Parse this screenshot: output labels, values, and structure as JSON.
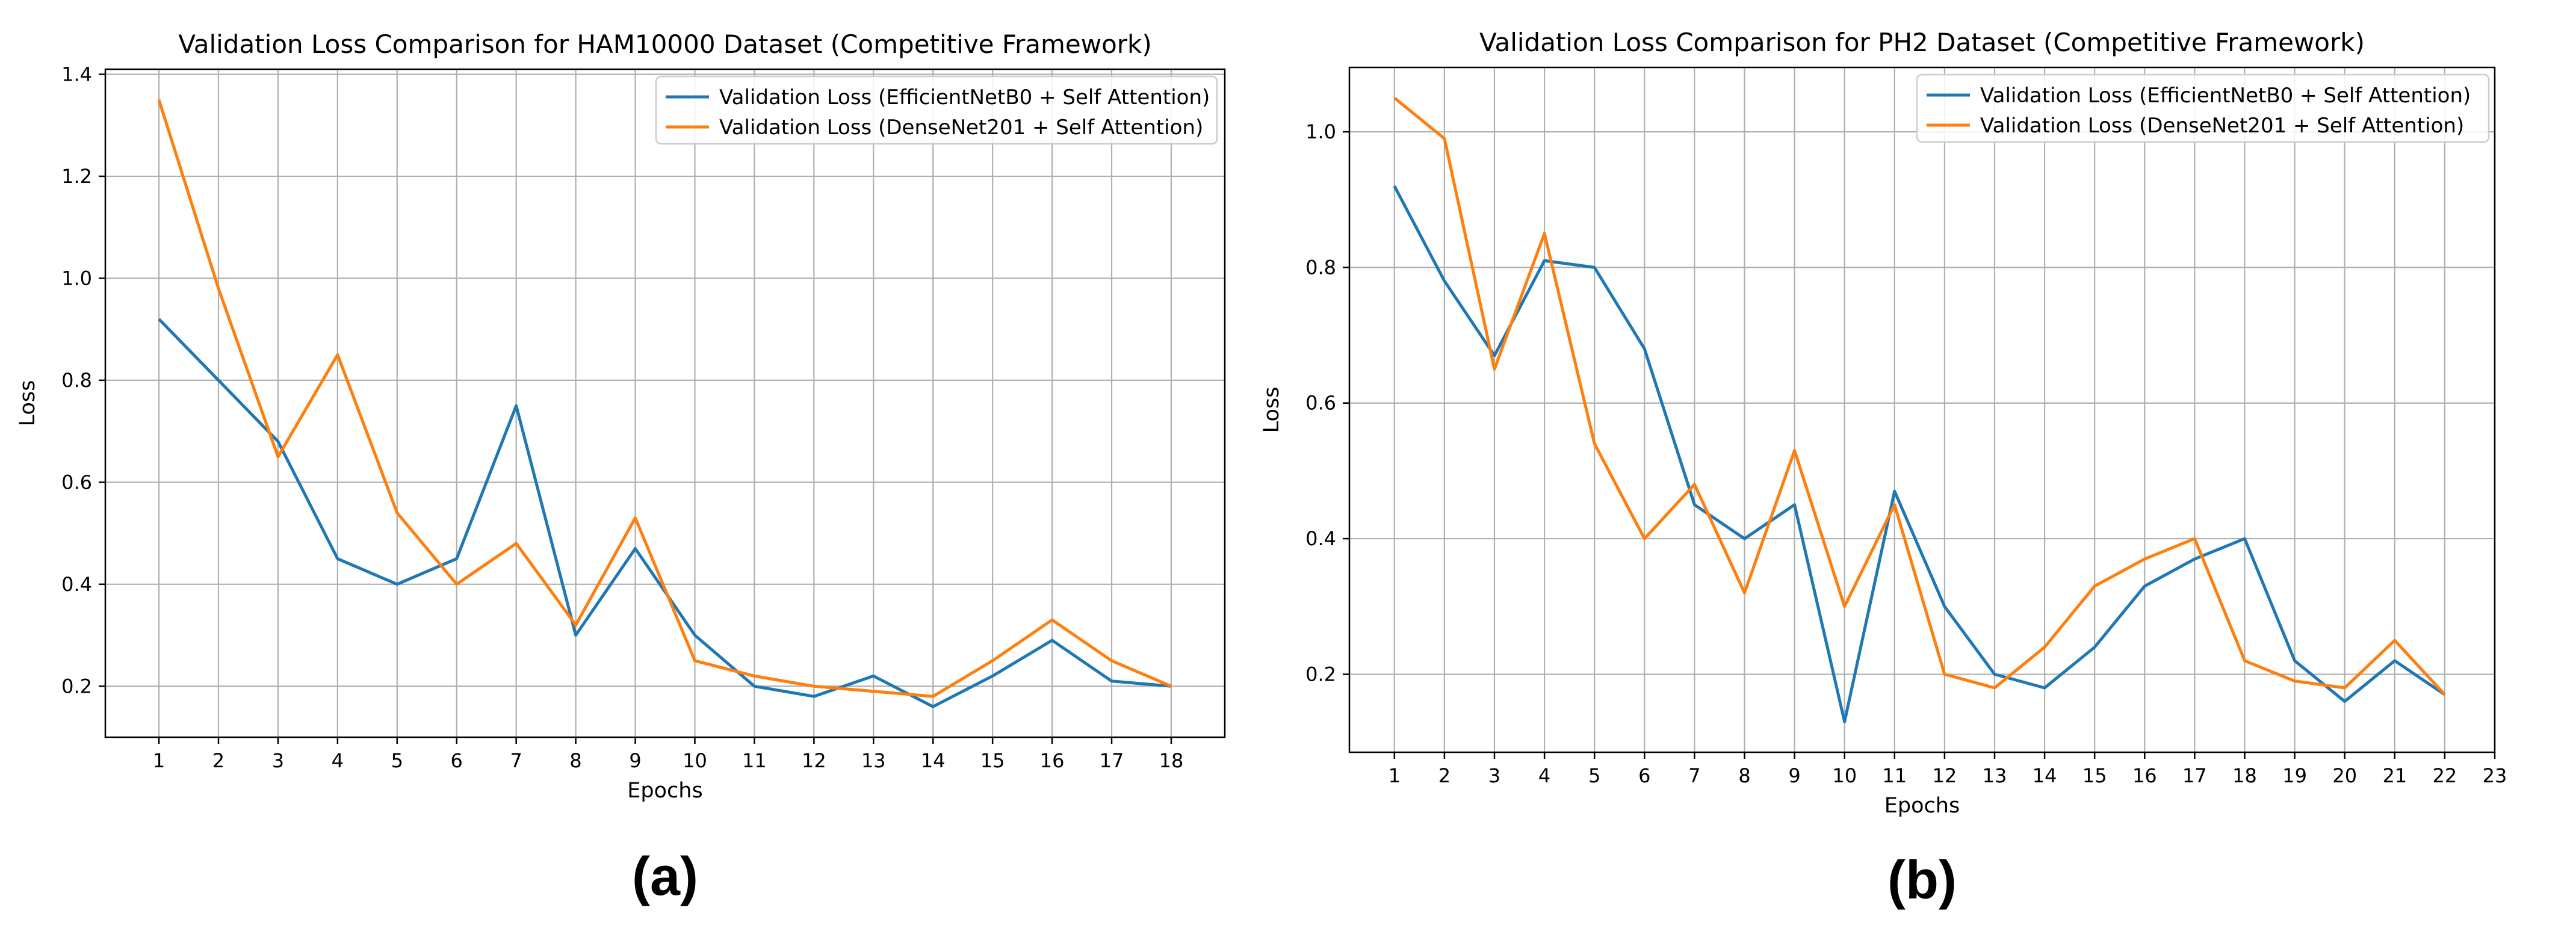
{
  "chart_data": [
    {
      "type": "line",
      "title": "Validation Loss Comparison for HAM10000 Dataset (Competitive Framework)",
      "xlabel": "Epochs",
      "ylabel": "Loss",
      "panel_label": "(a)",
      "x": [
        1,
        2,
        3,
        4,
        5,
        6,
        7,
        8,
        9,
        10,
        11,
        12,
        13,
        14,
        15,
        16,
        17,
        18
      ],
      "xticks": [
        1,
        2,
        3,
        4,
        5,
        6,
        7,
        8,
        9,
        10,
        11,
        12,
        13,
        14,
        15,
        16,
        17,
        18
      ],
      "yticks": [
        "0.2",
        "0.4",
        "0.6",
        "0.8",
        "1.0",
        "1.2",
        "1.4"
      ],
      "xlim": [
        0.1,
        18.9
      ],
      "ylim": [
        0.1,
        1.41
      ],
      "grid": true,
      "legend_position": "top-right",
      "series": [
        {
          "name": "Validation Loss (EfficientNetB0 + Self Attention)",
          "color": "#1f77b4",
          "values": [
            0.92,
            0.8,
            0.68,
            0.45,
            0.4,
            0.45,
            0.75,
            0.3,
            0.47,
            0.3,
            0.2,
            0.18,
            0.22,
            0.16,
            0.22,
            0.29,
            0.21,
            0.2
          ]
        },
        {
          "name": "Validation Loss (DenseNet201 + Self Attention)",
          "color": "#ff7f0e",
          "values": [
            1.35,
            0.98,
            0.65,
            0.85,
            0.54,
            0.4,
            0.48,
            0.32,
            0.53,
            0.25,
            0.22,
            0.2,
            0.19,
            0.18,
            0.25,
            0.33,
            0.25,
            0.2
          ]
        }
      ]
    },
    {
      "type": "line",
      "title": "Validation Loss Comparison for PH2 Dataset (Competitive Framework)",
      "xlabel": "Epochs",
      "ylabel": "Loss",
      "panel_label": "(b)",
      "x": [
        1,
        2,
        3,
        4,
        5,
        6,
        7,
        8,
        9,
        10,
        11,
        12,
        13,
        14,
        15,
        16,
        17,
        18,
        19,
        20,
        21,
        22
      ],
      "xticks": [
        1,
        2,
        3,
        4,
        5,
        6,
        7,
        8,
        9,
        10,
        11,
        12,
        13,
        14,
        15,
        16,
        17,
        18,
        19,
        20,
        21,
        22,
        23
      ],
      "yticks": [
        "0.2",
        "0.4",
        "0.6",
        "0.8",
        "1.0"
      ],
      "xlim": [
        0.1,
        23.0
      ],
      "ylim": [
        0.085,
        1.095
      ],
      "grid": true,
      "legend_position": "top-right",
      "series": [
        {
          "name": "Validation Loss (EfficientNetB0 + Self Attention)",
          "color": "#1f77b4",
          "values": [
            0.92,
            0.78,
            0.67,
            0.81,
            0.8,
            0.68,
            0.45,
            0.4,
            0.45,
            0.13,
            0.47,
            0.3,
            0.2,
            0.18,
            0.24,
            0.33,
            0.37,
            0.4,
            0.22,
            0.16,
            0.22,
            0.17
          ]
        },
        {
          "name": "Validation Loss (DenseNet201 + Self Attention)",
          "color": "#ff7f0e",
          "values": [
            1.05,
            0.99,
            0.65,
            0.85,
            0.54,
            0.4,
            0.48,
            0.32,
            0.53,
            0.3,
            0.45,
            0.2,
            0.18,
            0.24,
            0.33,
            0.37,
            0.4,
            0.22,
            0.19,
            0.18,
            0.25,
            0.17
          ]
        }
      ]
    }
  ]
}
